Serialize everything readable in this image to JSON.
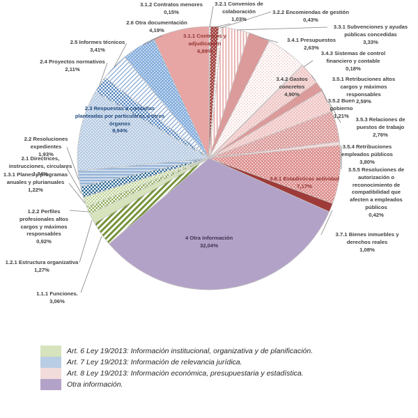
{
  "chart_data": {
    "type": "pie",
    "start_angle": "top",
    "direction": "clockwise",
    "slices": [
      {
        "id": "3.1.2",
        "label": "3.1.2 Contratos menores",
        "pct": "0,15%",
        "value": 0.15,
        "fill": {
          "type": "cdots",
          "bg": "#ffffff",
          "fg": "#b3b3b3"
        }
      },
      {
        "id": "3.2.1",
        "label": "3.2.1 Convenios de colaboración",
        "pct": "1,03%",
        "value": 1.03,
        "fill": {
          "type": "wdots",
          "bg": "#9e3b38",
          "fg": "#ffffff"
        }
      },
      {
        "id": "3.2.2",
        "label": "3.2.2 Encomiendas de gestión",
        "pct": "0,43%",
        "value": 0.43,
        "fill": {
          "type": "cdots",
          "bg": "#ffffff",
          "fg": "#dfa19f"
        }
      },
      {
        "id": "3.3.1",
        "label": "3.3.1 Subvenciones y ayudas públicas concedidas",
        "pct": "3,33%",
        "value": 3.33,
        "fill": {
          "type": "vstripes",
          "bg": "#ffffff",
          "fg": "#e7aeac"
        }
      },
      {
        "id": "3.4.1",
        "label": "3.4.1 Presupuestos",
        "pct": "2,63%",
        "value": 2.63,
        "fill": {
          "type": "solid",
          "bg": "#db9b9a"
        }
      },
      {
        "id": "3.4.2",
        "label": "3.4.2 Gastos concretos",
        "pct": "4,90%",
        "value": 4.9,
        "fill": {
          "type": "cdots",
          "bg": "#ffffff",
          "fg": "#edbdbc"
        },
        "label_color": "#404040"
      },
      {
        "id": "3.4.3",
        "label": "3.4.3 Sistemas de control financiero y contable",
        "pct": "0,18%",
        "value": 0.18,
        "fill": {
          "type": "solid",
          "bg": "#f2dcdb"
        }
      },
      {
        "id": "3.5.1",
        "label": "3.5.1 Retribuciones altos cargos y máximos responsables",
        "pct": "2,59%",
        "value": 2.59,
        "fill": {
          "type": "wdots",
          "bg": "#f0c7c6",
          "fg": "#ffffff"
        }
      },
      {
        "id": "3.5.2",
        "label": "3.5.2 Buen gobierno",
        "pct": "1,21%",
        "value": 1.21,
        "fill": {
          "type": "solid",
          "bg": "#db9b9a"
        }
      },
      {
        "id": "3.5.3",
        "label": "3.5.3 Relaciones de puestos de trabajo",
        "pct": "2,76%",
        "value": 2.76,
        "fill": {
          "type": "wdots",
          "bg": "#f0c6c5",
          "fg": "#ffffff"
        }
      },
      {
        "id": "3.5.4",
        "label": "3.5.4 Retribuciones empleados públicos",
        "pct": "3,80%",
        "value": 3.8,
        "fill": {
          "type": "wdots",
          "bg": "#dc9c9b",
          "fg": "#ffffff"
        }
      },
      {
        "id": "3.5.5",
        "label": "3.5.5 Resoluciones de autorización o reconocimiento de compatibilidad que afecten a empleados públicos",
        "pct": "0,42%",
        "value": 0.42,
        "fill": {
          "type": "solid",
          "bg": "#f2dcdb"
        }
      },
      {
        "id": "3.6.1",
        "label": "3.6.1 Estadísticas actividad",
        "pct": "7,17%",
        "value": 7.17,
        "fill": {
          "type": "wdots",
          "bg": "#dd8f8d",
          "fg": "#ffffff"
        },
        "label_color": "#943634"
      },
      {
        "id": "3.7.1",
        "label": "3.7.1 Bienes inmuebles y derechos reales",
        "pct": "1,08%",
        "value": 1.08,
        "fill": {
          "type": "solid",
          "bg": "#9e3b38"
        }
      },
      {
        "id": "4",
        "label": "4 Otra información",
        "pct": "32,04%",
        "value": 32.04,
        "fill": {
          "type": "solid",
          "bg": "#b3a2c7"
        },
        "label_color": "#3f3151"
      },
      {
        "id": "1.1.1",
        "label": "1.1.1 Funciones.",
        "pct": "3,06%",
        "value": 3.06,
        "fill": {
          "type": "diag",
          "bg": "#ffffff",
          "fg": "#77933c"
        }
      },
      {
        "id": "1.2.1",
        "label": "1.2.1 Estructura organizativa",
        "pct": "1,27%",
        "value": 1.27,
        "fill": {
          "type": "solid",
          "bg": "#d6e3bc"
        }
      },
      {
        "id": "1.2.2",
        "label": "1.2.2 Perfiles profesionales altos cargos y máximos responsables",
        "pct": "0,92%",
        "value": 0.92,
        "fill": {
          "type": "checker",
          "bg": "#ffffff",
          "fg": "#8aa94f"
        }
      },
      {
        "id": "1.3.1",
        "label": "1.3.1 Planes y programas anuales y plurianuales",
        "pct": "1,22%",
        "value": 1.22,
        "fill": {
          "type": "cdots",
          "bg": "#eaf1dd",
          "fg": "#97b457"
        }
      },
      {
        "id": "2.1",
        "label": "2.1 Directrices, instrucciones, circulares",
        "pct": "1,34%",
        "value": 1.34,
        "fill": {
          "type": "checker",
          "bg": "#ffffff",
          "fg": "#23618f"
        }
      },
      {
        "id": "2.2",
        "label": "2.2 Resoluciones expedientes",
        "pct": "1,93%",
        "value": 1.93,
        "fill": {
          "type": "hstripes",
          "bg": "#95b3d7",
          "fg": "#d9e4f1"
        }
      },
      {
        "id": "2.3",
        "label": "2.3 Respuestas a consultas planteadas por particulares u otros órganos",
        "pct": "9,94%",
        "value": 9.94,
        "fill": {
          "type": "wdots",
          "bg": "#b9cde4",
          "fg": "#ffffff"
        },
        "label_color": "#1f497d"
      },
      {
        "id": "2.4",
        "label": "2.4 Proyectos normativos",
        "pct": "2,11%",
        "value": 2.11,
        "fill": {
          "type": "checker",
          "bg": "#ffffff",
          "fg": "#4f81bd"
        }
      },
      {
        "id": "2.5",
        "label": "2.5 Informes técnicos",
        "pct": "3,41%",
        "value": 3.41,
        "fill": {
          "type": "diagthin",
          "bg": "#ffffff",
          "fg": "#87a9d4"
        }
      },
      {
        "id": "2.6",
        "label": "2.6 Otra documentación",
        "pct": "4,19%",
        "value": 4.19,
        "fill": {
          "type": "wdots",
          "bg": "#85aedd",
          "fg": "#ffffff"
        }
      },
      {
        "id": "3.1.1",
        "label": "3.1.1 Contratos y adjudicación",
        "pct": "6,89%",
        "value": 6.89,
        "fill": {
          "type": "solid",
          "bg": "#e7a5a4"
        },
        "label_color": "#943634"
      }
    ]
  },
  "legend": {
    "items": [
      {
        "label": "Art. 6 Ley 19/2013: Información institucional, organizativa y de planificación.",
        "color": "#d6e3bc"
      },
      {
        "label": "Art. 7 Ley 19/2013: Información de relevancia jurídica.",
        "color": "#b9cde4"
      },
      {
        "label": "Art. 8 Ley 19/2013: Información económica, presupuestaria y estadística.",
        "color": "#f2dcdb"
      },
      {
        "label": "Otra información.",
        "color": "#b3a2c7"
      }
    ]
  }
}
